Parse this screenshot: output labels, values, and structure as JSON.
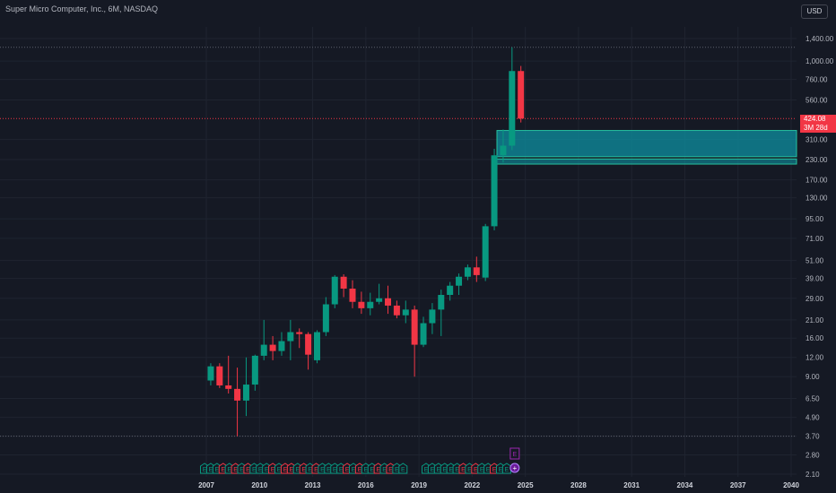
{
  "header": {
    "symbol_title": "Super Micro Computer, Inc., 6M, NASDAQ"
  },
  "toolbar": {
    "currency_label": "USD"
  },
  "last_price": {
    "value": "424.08",
    "countdown": "3M 28d"
  },
  "colors": {
    "background": "#151924",
    "up": "#089981",
    "down": "#f23645",
    "zone_fill": "#0e8fa0",
    "zone_border": "#25c2a0",
    "earnings_up": "#089981",
    "earnings_down": "#f23645",
    "earnings_next": "#9c27b0"
  },
  "chart_data": {
    "type": "candlestick",
    "title": "Super Micro Computer, Inc., 6M, NASDAQ",
    "y_scale": "log",
    "y_ticks": [
      2.1,
      2.8,
      3.7,
      4.9,
      6.5,
      9.0,
      12.0,
      16.0,
      21.0,
      29.0,
      39.0,
      51.0,
      71.0,
      95.0,
      130.0,
      170.0,
      230.0,
      310.0,
      424.08,
      560.0,
      760.0,
      1000.0,
      1400.0
    ],
    "y_tick_labels": [
      "2.10",
      "2.80",
      "3.70",
      "4.90",
      "6.50",
      "9.00",
      "12.00",
      "16.00",
      "21.00",
      "29.00",
      "39.00",
      "51.00",
      "71.00",
      "95.00",
      "130.00",
      "170.00",
      "230.00",
      "310.00",
      "",
      "560.00",
      "760.00",
      "1,000.00",
      "1,400.00"
    ],
    "x_ticks": [
      2007,
      2010,
      2013,
      2016,
      2019,
      2022,
      2025,
      2028,
      2031,
      2034,
      2037,
      2040
    ],
    "x_tick_labels": [
      "2007",
      "2010",
      "2013",
      "2016",
      "2019",
      "2022",
      "2025",
      "2028",
      "2031",
      "2034",
      "2037",
      "2040"
    ],
    "candles": [
      {
        "t": 2007.0,
        "o": 8.5,
        "h": 11.0,
        "l": 7.9,
        "c": 10.5
      },
      {
        "t": 2007.5,
        "o": 10.5,
        "h": 11.0,
        "l": 7.6,
        "c": 7.9
      },
      {
        "t": 2008.0,
        "o": 7.9,
        "h": 12.3,
        "l": 7.0,
        "c": 7.5
      },
      {
        "t": 2008.5,
        "o": 7.5,
        "h": 10.3,
        "l": 3.7,
        "c": 6.3
      },
      {
        "t": 2009.0,
        "o": 6.3,
        "h": 12.0,
        "l": 5.0,
        "c": 8.0
      },
      {
        "t": 2009.5,
        "o": 8.0,
        "h": 12.5,
        "l": 7.3,
        "c": 12.3
      },
      {
        "t": 2010.0,
        "o": 12.3,
        "h": 21.0,
        "l": 11.5,
        "c": 14.5
      },
      {
        "t": 2010.5,
        "o": 14.5,
        "h": 16.5,
        "l": 11.5,
        "c": 13.2
      },
      {
        "t": 2011.0,
        "o": 13.2,
        "h": 17.5,
        "l": 12.3,
        "c": 15.3
      },
      {
        "t": 2011.5,
        "o": 15.3,
        "h": 21.0,
        "l": 11.5,
        "c": 17.5
      },
      {
        "t": 2012.0,
        "o": 17.5,
        "h": 18.5,
        "l": 13.8,
        "c": 17.0
      },
      {
        "t": 2012.5,
        "o": 17.0,
        "h": 17.5,
        "l": 10.0,
        "c": 12.5
      },
      {
        "t": 2013.0,
        "o": 11.5,
        "h": 18.0,
        "l": 11.0,
        "c": 17.5
      },
      {
        "t": 2013.5,
        "o": 17.5,
        "h": 29.5,
        "l": 16.5,
        "c": 26.5
      },
      {
        "t": 2014.0,
        "o": 26.5,
        "h": 41.0,
        "l": 25.0,
        "c": 40.0
      },
      {
        "t": 2014.5,
        "o": 40.0,
        "h": 41.5,
        "l": 29.5,
        "c": 33.5
      },
      {
        "t": 2015.0,
        "o": 33.5,
        "h": 38.0,
        "l": 25.0,
        "c": 27.5
      },
      {
        "t": 2015.5,
        "o": 27.5,
        "h": 32.0,
        "l": 23.0,
        "c": 25.0
      },
      {
        "t": 2016.0,
        "o": 25.0,
        "h": 31.5,
        "l": 22.5,
        "c": 27.5
      },
      {
        "t": 2016.5,
        "o": 27.5,
        "h": 36.0,
        "l": 26.5,
        "c": 29.0
      },
      {
        "t": 2017.0,
        "o": 29.0,
        "h": 35.0,
        "l": 23.0,
        "c": 26.0
      },
      {
        "t": 2017.5,
        "o": 26.0,
        "h": 28.0,
        "l": 21.5,
        "c": 22.5
      },
      {
        "t": 2018.0,
        "o": 22.5,
        "h": 28.0,
        "l": 20.0,
        "c": 24.5
      },
      {
        "t": 2018.5,
        "o": 24.5,
        "h": 26.0,
        "l": 9.0,
        "c": 14.5
      },
      {
        "t": 2019.0,
        "o": 14.5,
        "h": 22.0,
        "l": 14.0,
        "c": 20.0
      },
      {
        "t": 2019.5,
        "o": 20.0,
        "h": 27.0,
        "l": 17.0,
        "c": 24.5
      },
      {
        "t": 2020.0,
        "o": 24.5,
        "h": 33.0,
        "l": 16.5,
        "c": 30.5
      },
      {
        "t": 2020.5,
        "o": 30.5,
        "h": 37.0,
        "l": 28.0,
        "c": 35.0
      },
      {
        "t": 2021.0,
        "o": 35.0,
        "h": 42.0,
        "l": 30.5,
        "c": 40.0
      },
      {
        "t": 2021.5,
        "o": 40.0,
        "h": 48.0,
        "l": 38.0,
        "c": 46.0
      },
      {
        "t": 2022.0,
        "o": 46.0,
        "h": 54.0,
        "l": 37.0,
        "c": 41.0
      },
      {
        "t": 2022.5,
        "o": 39.5,
        "h": 88.0,
        "l": 37.5,
        "c": 85.0
      },
      {
        "t": 2023.0,
        "o": 85.0,
        "h": 270.0,
        "l": 80.0,
        "c": 245.0
      },
      {
        "t": 2023.5,
        "o": 245.0,
        "h": 360.0,
        "l": 220.0,
        "c": 283.0
      },
      {
        "t": 2024.0,
        "o": 283.0,
        "h": 1229.0,
        "l": 265.0,
        "c": 862.0
      },
      {
        "t": 2024.5,
        "o": 862.0,
        "h": 930.0,
        "l": 400.0,
        "c": 424.08
      }
    ],
    "demand_zones": [
      {
        "low": 240,
        "high": 355
      },
      {
        "low": 215,
        "high": 232
      }
    ],
    "earnings_markers": [
      {
        "t": 2006.9,
        "r": "up"
      },
      {
        "t": 2007.25,
        "r": "up"
      },
      {
        "t": 2007.6,
        "r": "up"
      },
      {
        "t": 2007.95,
        "r": "down"
      },
      {
        "t": 2008.3,
        "r": "up"
      },
      {
        "t": 2008.65,
        "r": "down"
      },
      {
        "t": 2009.0,
        "r": "up"
      },
      {
        "t": 2009.35,
        "r": "down"
      },
      {
        "t": 2009.7,
        "r": "up"
      },
      {
        "t": 2010.05,
        "r": "up"
      },
      {
        "t": 2010.4,
        "r": "up"
      },
      {
        "t": 2010.75,
        "r": "down"
      },
      {
        "t": 2011.1,
        "r": "up"
      },
      {
        "t": 2011.45,
        "r": "down"
      },
      {
        "t": 2011.8,
        "r": "down"
      },
      {
        "t": 2012.15,
        "r": "up"
      },
      {
        "t": 2012.5,
        "r": "down"
      },
      {
        "t": 2012.85,
        "r": "up"
      },
      {
        "t": 2013.2,
        "r": "down"
      },
      {
        "t": 2013.55,
        "r": "up"
      },
      {
        "t": 2013.9,
        "r": "up"
      },
      {
        "t": 2014.25,
        "r": "up"
      },
      {
        "t": 2014.6,
        "r": "up"
      },
      {
        "t": 2014.95,
        "r": "down"
      },
      {
        "t": 2015.3,
        "r": "up"
      },
      {
        "t": 2015.65,
        "r": "down"
      },
      {
        "t": 2016.0,
        "r": "up"
      },
      {
        "t": 2016.35,
        "r": "up"
      },
      {
        "t": 2016.7,
        "r": "down"
      },
      {
        "t": 2017.05,
        "r": "up"
      },
      {
        "t": 2017.4,
        "r": "down"
      },
      {
        "t": 2017.75,
        "r": "up"
      },
      {
        "t": 2018.1,
        "r": "up"
      },
      {
        "t": 2019.4,
        "r": "up"
      },
      {
        "t": 2019.75,
        "r": "up"
      },
      {
        "t": 2020.1,
        "r": "up"
      },
      {
        "t": 2020.45,
        "r": "up"
      },
      {
        "t": 2020.8,
        "r": "up"
      },
      {
        "t": 2021.15,
        "r": "up"
      },
      {
        "t": 2021.5,
        "r": "down"
      },
      {
        "t": 2021.85,
        "r": "up"
      },
      {
        "t": 2022.2,
        "r": "down"
      },
      {
        "t": 2022.55,
        "r": "up"
      },
      {
        "t": 2022.9,
        "r": "up"
      },
      {
        "t": 2023.25,
        "r": "down"
      },
      {
        "t": 2023.6,
        "r": "up"
      },
      {
        "t": 2023.95,
        "r": "up"
      }
    ],
    "earnings_label": "E",
    "next_earnings": {
      "t": 2024.1,
      "label": "E"
    }
  }
}
